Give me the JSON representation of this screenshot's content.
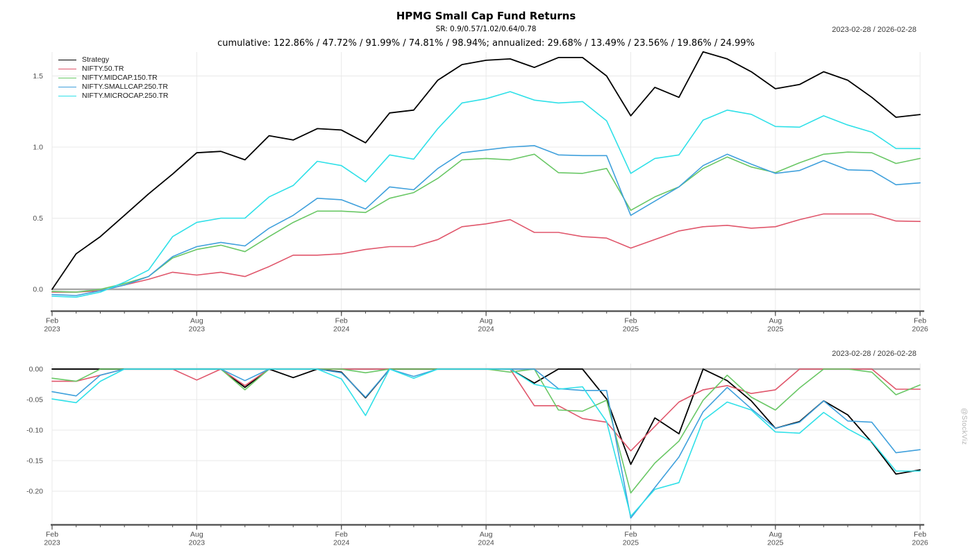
{
  "header": {
    "title": "HPMG Small Cap Fund Returns",
    "subtitle": "SR: 0.9/0.57/1.02/0.64/0.78",
    "stats": "cumulative: 122.86% / 47.72% / 91.99% / 74.81% / 98.94%; annualized: 29.68% / 13.49% / 23.56% / 19.86% / 24.99%",
    "date_range": "2023-02-28 / 2026-02-28"
  },
  "watermark": "@StockViz",
  "colors": {
    "strategy": "#000000",
    "nifty50": "#E0566B",
    "midcap150": "#69C765",
    "smallcap250": "#3FA0DC",
    "microcap250": "#2FE0E8",
    "gridline": "#e9e9e9",
    "zero_line": "#a8a8a8",
    "axis": "#4a4a4a",
    "tick_text": "#4d4d4d"
  },
  "chart_data": [
    {
      "type": "line",
      "panel": "cumulative-returns",
      "x": [
        "2023-02",
        "2023-03",
        "2023-04",
        "2023-05",
        "2023-06",
        "2023-07",
        "2023-08",
        "2023-09",
        "2023-10",
        "2023-11",
        "2023-12",
        "2024-01",
        "2024-02",
        "2024-03",
        "2024-04",
        "2024-05",
        "2024-06",
        "2024-07",
        "2024-08",
        "2024-09",
        "2024-10",
        "2024-11",
        "2024-12",
        "2025-01",
        "2025-02",
        "2025-03",
        "2025-04",
        "2025-05",
        "2025-06",
        "2025-07",
        "2025-08",
        "2025-09",
        "2025-10",
        "2025-11",
        "2025-12",
        "2026-01",
        "2026-02"
      ],
      "x_ticks": [
        {
          "idx": 0,
          "month": "Feb",
          "year": "2023"
        },
        {
          "idx": 6,
          "month": "Aug",
          "year": "2023"
        },
        {
          "idx": 12,
          "month": "Feb",
          "year": "2024"
        },
        {
          "idx": 18,
          "month": "Aug",
          "year": "2024"
        },
        {
          "idx": 24,
          "month": "Feb",
          "year": "2025"
        },
        {
          "idx": 30,
          "month": "Aug",
          "year": "2025"
        },
        {
          "idx": 36,
          "month": "Feb",
          "year": "2026"
        }
      ],
      "y_ticks": [
        {
          "v": 0.0,
          "label": "0.0"
        },
        {
          "v": 0.5,
          "label": "0.5"
        },
        {
          "v": 1.0,
          "label": "1.0"
        },
        {
          "v": 1.5,
          "label": "1.5"
        }
      ],
      "ylim": [
        -0.15,
        1.67
      ],
      "grid": true,
      "legend_position": "top-left",
      "series": [
        {
          "name": "Strategy",
          "color": "#000000",
          "values": [
            0.0,
            0.25,
            0.37,
            0.52,
            0.67,
            0.81,
            0.96,
            0.97,
            0.91,
            1.08,
            1.05,
            1.13,
            1.12,
            1.03,
            1.24,
            1.26,
            1.47,
            1.58,
            1.61,
            1.62,
            1.56,
            1.63,
            1.63,
            1.5,
            1.22,
            1.42,
            1.35,
            1.67,
            1.62,
            1.53,
            1.41,
            1.44,
            1.53,
            1.47,
            1.35,
            1.21,
            1.2286
          ]
        },
        {
          "name": "NIFTY.50.TR",
          "color": "#E0566B",
          "values": [
            -0.02,
            -0.02,
            -0.01,
            0.03,
            0.07,
            0.12,
            0.1,
            0.12,
            0.09,
            0.16,
            0.24,
            0.24,
            0.25,
            0.28,
            0.3,
            0.3,
            0.35,
            0.44,
            0.46,
            0.49,
            0.4,
            0.4,
            0.37,
            0.36,
            0.29,
            0.35,
            0.41,
            0.44,
            0.45,
            0.43,
            0.44,
            0.49,
            0.53,
            0.53,
            0.53,
            0.48,
            0.4772
          ]
        },
        {
          "name": "NIFTY.MIDCAP.150.TR",
          "color": "#69C765",
          "values": [
            -0.015,
            -0.02,
            0.0,
            0.04,
            0.09,
            0.22,
            0.28,
            0.31,
            0.265,
            0.37,
            0.47,
            0.55,
            0.55,
            0.54,
            0.64,
            0.68,
            0.78,
            0.91,
            0.92,
            0.91,
            0.95,
            0.82,
            0.815,
            0.85,
            0.555,
            0.65,
            0.72,
            0.85,
            0.93,
            0.86,
            0.82,
            0.89,
            0.95,
            0.965,
            0.96,
            0.885,
            0.9199
          ]
        },
        {
          "name": "NIFTY.SMALLCAP.250.TR",
          "color": "#3FA0DC",
          "values": [
            -0.037,
            -0.044,
            -0.01,
            0.03,
            0.09,
            0.23,
            0.3,
            0.33,
            0.305,
            0.43,
            0.52,
            0.64,
            0.63,
            0.565,
            0.72,
            0.7,
            0.85,
            0.96,
            0.98,
            1.0,
            1.01,
            0.945,
            0.94,
            0.94,
            0.52,
            0.62,
            0.72,
            0.87,
            0.95,
            0.88,
            0.815,
            0.835,
            0.905,
            0.84,
            0.835,
            0.735,
            0.7481
          ]
        },
        {
          "name": "NIFTY.MICROCAP.250.TR",
          "color": "#2FE0E8",
          "values": [
            -0.049,
            -0.055,
            -0.02,
            0.05,
            0.135,
            0.37,
            0.47,
            0.5,
            0.5,
            0.65,
            0.73,
            0.9,
            0.87,
            0.755,
            0.945,
            0.915,
            1.13,
            1.31,
            1.34,
            1.39,
            1.33,
            1.31,
            1.32,
            1.185,
            0.815,
            0.92,
            0.945,
            1.19,
            1.26,
            1.23,
            1.145,
            1.14,
            1.22,
            1.155,
            1.105,
            0.99,
            0.9894
          ]
        }
      ]
    },
    {
      "type": "line",
      "panel": "drawdown",
      "x": [
        "2023-02",
        "2023-03",
        "2023-04",
        "2023-05",
        "2023-06",
        "2023-07",
        "2023-08",
        "2023-09",
        "2023-10",
        "2023-11",
        "2023-12",
        "2024-01",
        "2024-02",
        "2024-03",
        "2024-04",
        "2024-05",
        "2024-06",
        "2024-07",
        "2024-08",
        "2024-09",
        "2024-10",
        "2024-11",
        "2024-12",
        "2025-01",
        "2025-02",
        "2025-03",
        "2025-04",
        "2025-05",
        "2025-06",
        "2025-07",
        "2025-08",
        "2025-09",
        "2025-10",
        "2025-11",
        "2025-12",
        "2026-01",
        "2026-02"
      ],
      "x_ticks": [
        {
          "idx": 0,
          "month": "Feb",
          "year": "2023"
        },
        {
          "idx": 6,
          "month": "Aug",
          "year": "2023"
        },
        {
          "idx": 12,
          "month": "Feb",
          "year": "2024"
        },
        {
          "idx": 18,
          "month": "Aug",
          "year": "2024"
        },
        {
          "idx": 24,
          "month": "Feb",
          "year": "2025"
        },
        {
          "idx": 30,
          "month": "Aug",
          "year": "2025"
        },
        {
          "idx": 36,
          "month": "Feb",
          "year": "2026"
        }
      ],
      "y_ticks": [
        {
          "v": 0.0,
          "label": "0.00"
        },
        {
          "v": -0.05,
          "label": "-0.05"
        },
        {
          "v": -0.1,
          "label": "-0.10"
        },
        {
          "v": -0.15,
          "label": "-0.15"
        },
        {
          "v": -0.2,
          "label": "-0.20"
        }
      ],
      "ylim": [
        -0.253,
        0.0
      ],
      "grid": true,
      "legend_position": "none",
      "series": [
        {
          "name": "Strategy",
          "color": "#000000",
          "values": [
            0,
            0,
            0,
            0,
            0,
            0,
            0,
            0,
            -0.03,
            0,
            -0.014,
            0,
            -0.005,
            -0.047,
            0,
            0,
            0,
            0,
            0,
            0,
            -0.023,
            0,
            0,
            -0.049,
            -0.156,
            -0.08,
            -0.106,
            0,
            -0.019,
            -0.052,
            -0.097,
            -0.086,
            -0.052,
            -0.075,
            -0.12,
            -0.172,
            -0.165
          ]
        },
        {
          "name": "NIFTY.50.TR",
          "color": "#E0566B",
          "values": [
            -0.02,
            -0.02,
            -0.01,
            0,
            0,
            0,
            -0.018,
            0,
            -0.027,
            0,
            0,
            0,
            0,
            0,
            0,
            0,
            0,
            0,
            0,
            0,
            -0.06,
            -0.06,
            -0.081,
            -0.087,
            -0.134,
            -0.094,
            -0.054,
            -0.034,
            -0.027,
            -0.04,
            -0.034,
            0,
            0,
            0,
            0,
            -0.033,
            -0.033
          ]
        },
        {
          "name": "NIFTY.MIDCAP.150.TR",
          "color": "#69C765",
          "values": [
            -0.015,
            -0.02,
            0,
            0,
            0,
            0,
            0,
            0,
            -0.034,
            0,
            0,
            0,
            0,
            -0.006,
            0,
            0,
            0,
            0,
            0,
            -0.005,
            0,
            -0.067,
            -0.069,
            -0.051,
            -0.203,
            -0.154,
            -0.118,
            -0.051,
            -0.01,
            -0.046,
            -0.067,
            -0.031,
            0,
            0,
            -0.005,
            -0.042,
            -0.026
          ]
        },
        {
          "name": "NIFTY.SMALLCAP.250.TR",
          "color": "#3FA0DC",
          "values": [
            -0.037,
            -0.044,
            -0.01,
            0,
            0,
            0,
            0,
            0,
            -0.019,
            0,
            0,
            0,
            -0.006,
            -0.046,
            0,
            -0.012,
            0,
            0,
            0,
            0,
            0,
            -0.032,
            -0.035,
            -0.035,
            -0.244,
            -0.194,
            -0.144,
            -0.07,
            -0.03,
            -0.065,
            -0.097,
            -0.087,
            -0.052,
            -0.085,
            -0.087,
            -0.137,
            -0.132
          ]
        },
        {
          "name": "NIFTY.MICROCAP.250.TR",
          "color": "#2FE0E8",
          "values": [
            -0.049,
            -0.055,
            -0.02,
            0,
            0,
            0,
            0,
            0,
            0,
            0,
            0,
            0,
            -0.016,
            -0.076,
            0,
            -0.015,
            0,
            0,
            0,
            0,
            -0.025,
            -0.033,
            -0.029,
            -0.086,
            -0.241,
            -0.197,
            -0.186,
            -0.084,
            -0.054,
            -0.067,
            -0.103,
            -0.105,
            -0.071,
            -0.098,
            -0.119,
            -0.167,
            -0.167
          ]
        }
      ]
    }
  ]
}
